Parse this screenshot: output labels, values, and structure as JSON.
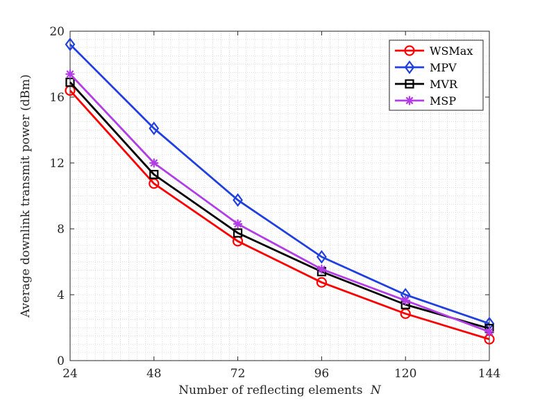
{
  "chart_data": {
    "type": "line",
    "title": "",
    "xlabel": "Number of reflecting elements",
    "xlabel_var": "N",
    "ylabel": "Average downlink transmit power (dBm)",
    "x": [
      24,
      48,
      72,
      96,
      120,
      144
    ],
    "xlim": [
      24,
      144
    ],
    "ylim": [
      0,
      20
    ],
    "xticks": [
      "24",
      "48",
      "72",
      "96",
      "120",
      "144"
    ],
    "yticks": [
      "0",
      "4",
      "8",
      "12",
      "16",
      "20"
    ],
    "grid": "minor-dotted",
    "legend_position": "top-right",
    "series": [
      {
        "name": "WSMax",
        "color": "#ff0000",
        "marker": "circle",
        "values": [
          16.4,
          10.75,
          7.25,
          4.75,
          2.85,
          1.3
        ]
      },
      {
        "name": "MPV",
        "color": "#1f3fe0",
        "marker": "diamond",
        "values": [
          19.2,
          14.1,
          9.75,
          6.3,
          4.0,
          2.25
        ]
      },
      {
        "name": "MVR",
        "color": "#000000",
        "marker": "square",
        "values": [
          16.9,
          11.3,
          7.75,
          5.4,
          3.4,
          1.95
        ]
      },
      {
        "name": "MSP",
        "color": "#b23ce6",
        "marker": "asterisk",
        "values": [
          17.4,
          12.0,
          8.3,
          5.55,
          3.65,
          1.75
        ]
      }
    ]
  }
}
